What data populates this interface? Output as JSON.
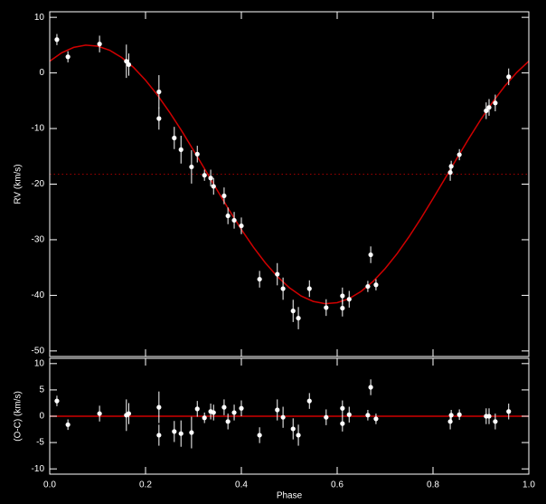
{
  "chart_data": [
    {
      "type": "scatter",
      "y_label": "RV (km/s)",
      "ylim": [
        -51,
        11
      ],
      "yticks": [
        10,
        0,
        -10,
        -20,
        -30,
        -40,
        -50
      ],
      "xlim": [
        0,
        1
      ],
      "x": [
        0.015,
        0.038,
        0.104,
        0.16,
        0.165,
        0.228,
        0.228,
        0.26,
        0.274,
        0.296,
        0.308,
        0.323,
        0.336,
        0.342,
        0.364,
        0.372,
        0.385,
        0.4,
        0.438,
        0.475,
        0.487,
        0.508,
        0.519,
        0.542,
        0.577,
        0.611,
        0.611,
        0.625,
        0.664,
        0.67,
        0.681,
        0.836,
        0.838,
        0.855,
        0.911,
        0.917,
        0.93,
        0.958
      ],
      "values": [
        6.0,
        2.9,
        5.2,
        2.1,
        1.5,
        -3.4,
        -8.2,
        -11.7,
        -13.8,
        -16.9,
        -14.6,
        -18.4,
        -18.9,
        -20.4,
        -22.1,
        -25.7,
        -26.5,
        -27.5,
        -37.1,
        -36.2,
        -38.8,
        -42.8,
        -44.1,
        -38.8,
        -42.2,
        -42.3,
        -40.1,
        -40.7,
        -38.4,
        -32.7,
        -38.1,
        -17.9,
        -16.8,
        -14.7,
        -6.8,
        -6.2,
        -5.4,
        -0.7
      ],
      "errors": [
        1.0,
        1.0,
        1.5,
        3.0,
        2.0,
        3.0,
        2.0,
        2.0,
        2.5,
        3.0,
        1.5,
        1.0,
        1.5,
        1.5,
        1.5,
        1.5,
        1.5,
        1.5,
        1.5,
        2.0,
        2.0,
        2.0,
        2.0,
        1.5,
        1.5,
        1.5,
        1.5,
        1.5,
        1.0,
        1.5,
        1.0,
        1.5,
        1.0,
        1.0,
        1.5,
        1.5,
        1.5,
        1.5
      ],
      "color": "#ffffff",
      "model": {
        "color": "#d00000",
        "x": [
          0,
          0.025,
          0.05,
          0.075,
          0.1,
          0.125,
          0.15,
          0.175,
          0.2,
          0.225,
          0.25,
          0.275,
          0.3,
          0.325,
          0.35,
          0.375,
          0.4,
          0.425,
          0.45,
          0.475,
          0.5,
          0.525,
          0.55,
          0.575,
          0.6,
          0.625,
          0.65,
          0.675,
          0.7,
          0.725,
          0.75,
          0.775,
          0.8,
          0.825,
          0.85,
          0.875,
          0.9,
          0.925,
          0.95,
          0.975,
          1
        ],
        "values": [
          2.12,
          3.63,
          4.59,
          4.99,
          4.82,
          4.08,
          2.79,
          0.98,
          -1.3,
          -4.0,
          -7.05,
          -10.37,
          -13.89,
          -17.52,
          -21.16,
          -24.74,
          -28.15,
          -31.32,
          -34.16,
          -36.62,
          -38.62,
          -40.13,
          -41.09,
          -41.49,
          -41.32,
          -40.58,
          -39.29,
          -37.48,
          -35.2,
          -32.5,
          -29.45,
          -26.12,
          -22.61,
          -18.98,
          -15.34,
          -11.76,
          -8.35,
          -5.18,
          -2.34,
          0.12,
          2.12
        ]
      },
      "reference_line": -18.2,
      "reference_color": "#a00000"
    },
    {
      "type": "scatter",
      "y_label": "(O-C) (km/s)",
      "x_label": "Phase",
      "ylim": [
        -11,
        11
      ],
      "yticks": [
        10,
        5,
        0,
        -5,
        -10
      ],
      "xlim": [
        0,
        1
      ],
      "xticks": [
        {
          "value": 0,
          "label": "0.0"
        },
        0.2,
        0.4,
        0.6,
        0.8,
        {
          "value": 1,
          "label": "1.0"
        }
      ],
      "x": [
        0.015,
        0.038,
        0.104,
        0.16,
        0.165,
        0.228,
        0.228,
        0.26,
        0.274,
        0.296,
        0.308,
        0.323,
        0.336,
        0.342,
        0.364,
        0.372,
        0.385,
        0.4,
        0.438,
        0.475,
        0.487,
        0.508,
        0.519,
        0.542,
        0.577,
        0.611,
        0.611,
        0.625,
        0.664,
        0.67,
        0.681,
        0.836,
        0.838,
        0.855,
        0.911,
        0.917,
        0.93,
        0.958
      ],
      "values": [
        2.9,
        -1.6,
        0.5,
        0.2,
        0.5,
        1.7,
        -3.6,
        -2.9,
        -3.3,
        -3.1,
        1.4,
        -0.3,
        0.9,
        0.7,
        1.7,
        -1.0,
        0.7,
        1.5,
        -3.6,
        1.2,
        -0.2,
        -2.4,
        -3.6,
        2.9,
        -0.2,
        -1.4,
        1.5,
        0.3,
        0.2,
        5.5,
        -0.5,
        -1.0,
        0.2,
        0.3,
        0.0,
        0.0,
        -1.0,
        0.9
      ],
      "errors": [
        1.0,
        1.0,
        1.5,
        3.0,
        2.0,
        3.0,
        2.0,
        2.0,
        2.5,
        3.0,
        1.5,
        1.0,
        1.5,
        1.5,
        1.5,
        1.5,
        1.5,
        1.5,
        1.5,
        2.0,
        2.0,
        2.0,
        2.0,
        1.5,
        1.5,
        1.5,
        1.5,
        1.5,
        1.0,
        1.5,
        1.0,
        1.5,
        1.0,
        1.0,
        1.5,
        1.5,
        1.5,
        1.5
      ],
      "color": "#ffffff",
      "reference_line": 0,
      "reference_color": "#d00000"
    }
  ]
}
